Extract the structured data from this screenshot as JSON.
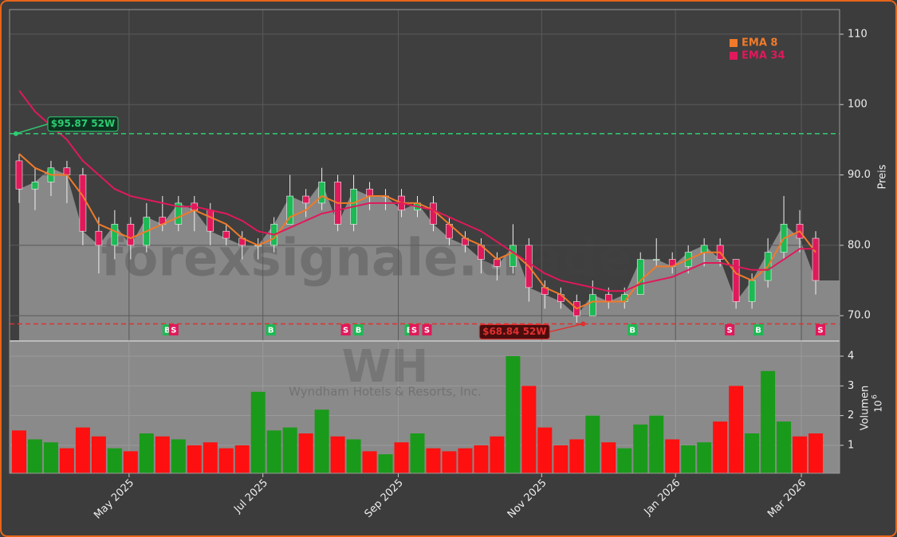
{
  "chart_data": [
    {
      "type": "candlestick",
      "watermark": "forexsignale.trade",
      "ylabel": "Preis",
      "ylim": [
        66.4,
        113.5
      ],
      "yticks": [
        {
          "value": 70,
          "label": "70.0"
        },
        {
          "value": 80,
          "label": "80.0"
        },
        {
          "value": 90,
          "label": "90.0"
        },
        100,
        110
      ],
      "xlim": [
        -0.6,
        51.5
      ],
      "grid": true,
      "area_color": "#888888",
      "up_color": "#1db954",
      "down_color": "#e0195a",
      "open": [
        92,
        88,
        89,
        91,
        90,
        82,
        80,
        83,
        80,
        84,
        83,
        86,
        85,
        82,
        81,
        80,
        80,
        83,
        87,
        86,
        89,
        83,
        88,
        87,
        87,
        85,
        86,
        83,
        81,
        80,
        78,
        77,
        80,
        74,
        73,
        72,
        70,
        73,
        72,
        73,
        78,
        78,
        77,
        79,
        80,
        78,
        72,
        75,
        79,
        83,
        81
      ],
      "high": [
        93,
        91,
        92,
        92,
        91,
        84,
        85,
        84,
        86,
        87,
        87,
        87,
        86,
        83,
        82,
        81,
        84,
        90,
        88,
        91,
        90,
        90,
        89,
        88,
        88,
        87,
        87,
        84,
        82,
        81,
        79,
        83,
        81,
        75,
        74,
        73,
        75,
        74,
        74,
        79,
        81,
        79,
        80,
        81,
        81,
        78,
        76,
        81,
        87,
        85,
        82
      ],
      "low": [
        86,
        85,
        87,
        86,
        80,
        76,
        78,
        78,
        79,
        82,
        82,
        82,
        80,
        80,
        78,
        78,
        79,
        83,
        84,
        85,
        82,
        82,
        85,
        85,
        84,
        84,
        82,
        80,
        79,
        76,
        75,
        76,
        72,
        71,
        71,
        69,
        70,
        71,
        71,
        73,
        77,
        76,
        76,
        77,
        77,
        71,
        71,
        74,
        78,
        79,
        73
      ],
      "close": [
        88,
        89,
        91,
        90,
        82,
        80,
        83,
        80,
        84,
        83,
        86,
        85,
        82,
        81,
        80,
        80,
        83,
        87,
        86,
        89,
        83,
        88,
        87,
        87,
        85,
        86,
        83,
        81,
        80,
        78,
        77,
        80,
        74,
        73,
        72,
        70,
        73,
        72,
        73,
        78,
        78,
        77,
        79,
        80,
        78,
        72,
        75,
        79,
        83,
        81,
        75
      ],
      "legend": "upper right",
      "series": [
        {
          "name": "EMA 8",
          "color": "#f07a2a",
          "values": [
            93,
            91,
            90,
            90,
            87,
            83,
            82,
            81,
            82,
            83,
            84,
            85,
            84,
            83,
            81,
            80,
            81,
            84,
            85,
            87,
            86,
            86,
            87,
            87,
            86,
            86,
            85,
            83,
            81,
            80,
            78,
            79,
            77,
            74,
            73,
            71,
            72,
            72,
            72,
            75,
            77,
            77,
            78,
            79,
            79,
            76,
            75,
            77,
            81,
            82,
            79
          ]
        },
        {
          "name": "EMA 34",
          "color": "#e0195a",
          "values": [
            102,
            99,
            97,
            95,
            92,
            90,
            88,
            87,
            86.5,
            86,
            85.5,
            85.5,
            85,
            84.5,
            83.5,
            82,
            81.5,
            82.5,
            83.5,
            84.5,
            85,
            85.5,
            86,
            86,
            86,
            85.5,
            85,
            84,
            83,
            82,
            80.5,
            79,
            77.5,
            76,
            75,
            74.5,
            74,
            73.5,
            73.5,
            74.5,
            75,
            75.5,
            76.5,
            77.5,
            77.5,
            77,
            76.5,
            76.5,
            78,
            79.5,
            79.5
          ]
        }
      ],
      "annotations": [
        {
          "text": "$95.87 52W",
          "value": 95.87,
          "x": -0.2,
          "color": "#2ecc71"
        },
        {
          "text": "$68.84 52W",
          "value": 68.84,
          "x": 35.4,
          "color": "#e03030"
        }
      ],
      "signals": [
        {
          "x": 9.3,
          "label": "B"
        },
        {
          "x": 9.7,
          "label": "S"
        },
        {
          "x": 15.8,
          "label": "B"
        },
        {
          "x": 20.5,
          "label": "S"
        },
        {
          "x": 21.3,
          "label": "B"
        },
        {
          "x": 24.5,
          "label": "B"
        },
        {
          "x": 24.8,
          "label": "S"
        },
        {
          "x": 25.6,
          "label": "S"
        },
        {
          "x": 38.5,
          "label": "B"
        },
        {
          "x": 44.6,
          "label": "S"
        },
        {
          "x": 46.4,
          "label": "B"
        },
        {
          "x": 50.3,
          "label": "S"
        }
      ],
      "signal_colors": {
        "B": "#1db954",
        "S": "#e0195a"
      }
    },
    {
      "type": "bar",
      "ticker": "WH",
      "company": "Wyndham Hotels & Resorts, Inc.",
      "ylabel": "Volumen",
      "ylabel_base": "10",
      "ylabel_exponent": "6",
      "ylim": [
        0.06,
        4.51
      ],
      "yticks": [
        1,
        2,
        3,
        4
      ],
      "xlim": [
        -0.6,
        51.5
      ],
      "grid": true,
      "up_color": "#1a9a1a",
      "down_color": "#ff1010",
      "values": [
        1.5,
        1.2,
        1.1,
        0.9,
        1.6,
        1.3,
        0.9,
        0.8,
        1.4,
        1.3,
        1.2,
        1.0,
        1.1,
        0.9,
        1.0,
        2.8,
        1.5,
        1.6,
        1.4,
        2.2,
        1.3,
        1.2,
        0.8,
        0.7,
        1.1,
        1.4,
        0.9,
        0.8,
        0.9,
        1.0,
        1.3,
        4.0,
        3.0,
        1.6,
        1.0,
        1.2,
        2.0,
        1.1,
        0.9,
        1.7,
        2.0,
        1.2,
        1.0,
        1.1,
        1.8,
        3.0,
        1.4,
        3.5,
        1.8,
        1.3,
        1.4
      ],
      "xticks": [
        {
          "value": 6.9,
          "label": "May 2025"
        },
        {
          "value": 15.3,
          "label": "Jul 2025"
        },
        {
          "value": 23.8,
          "label": "Sep 2025"
        },
        {
          "value": 32.8,
          "label": "Nov 2025"
        },
        {
          "value": 41.2,
          "label": "Jan 2026"
        },
        {
          "value": 49.1,
          "label": "Mar 2026"
        }
      ]
    }
  ]
}
